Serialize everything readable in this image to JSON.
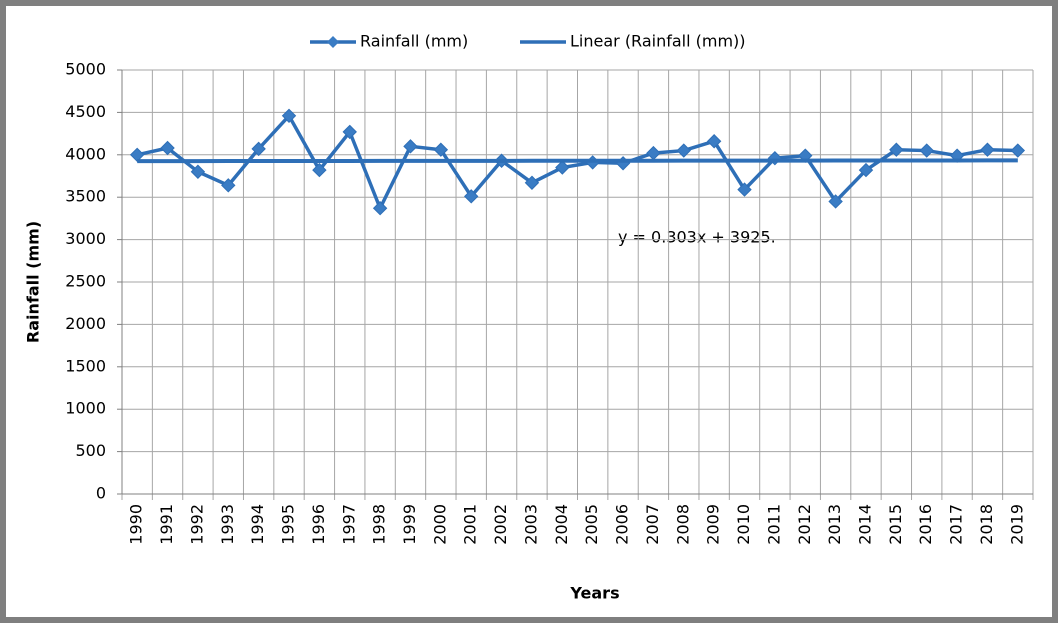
{
  "chart_data": {
    "type": "line",
    "xlabel": "Years",
    "ylabel": "Rainfall (mm)",
    "annotation": "y = 0.303x + 3925.",
    "categories": [
      "1990",
      "1991",
      "1992",
      "1993",
      "1994",
      "1995",
      "1996",
      "1997",
      "1998",
      "1999",
      "2000",
      "2001",
      "2002",
      "2003",
      "2004",
      "2005",
      "2006",
      "2007",
      "2008",
      "2009",
      "2010",
      "2011",
      "2012",
      "2013",
      "2014",
      "2015",
      "2016",
      "2017",
      "2018",
      "2019"
    ],
    "series": [
      {
        "name": "Rainfall (mm)",
        "color": "#2e6fb7",
        "marker": "diamond",
        "values": [
          4000,
          4080,
          3800,
          3640,
          4070,
          4460,
          3820,
          4270,
          3370,
          4100,
          4060,
          3510,
          3930,
          3670,
          3850,
          3910,
          3900,
          4020,
          4050,
          4160,
          3590,
          3960,
          3990,
          3450,
          3820,
          4060,
          4050,
          3990,
          4060,
          4050
        ]
      },
      {
        "name": "Linear (Rainfall (mm))",
        "color": "#2e6fb7",
        "values": [
          3925.3,
          3925.6,
          3925.9,
          3926.2,
          3926.5,
          3926.8,
          3927.1,
          3927.4,
          3927.7,
          3928.0,
          3928.3,
          3928.6,
          3928.9,
          3929.2,
          3929.5,
          3929.8,
          3930.2,
          3930.5,
          3930.8,
          3931.1,
          3931.4,
          3931.7,
          3932.0,
          3932.3,
          3932.6,
          3932.9,
          3933.2,
          3933.5,
          3933.8,
          3934.1
        ]
      }
    ],
    "ylim": [
      0,
      5000
    ],
    "yticks": [
      0,
      500,
      1000,
      1500,
      2000,
      2500,
      3000,
      3500,
      4000,
      4500,
      5000
    ],
    "grid": true,
    "legend": "top"
  }
}
